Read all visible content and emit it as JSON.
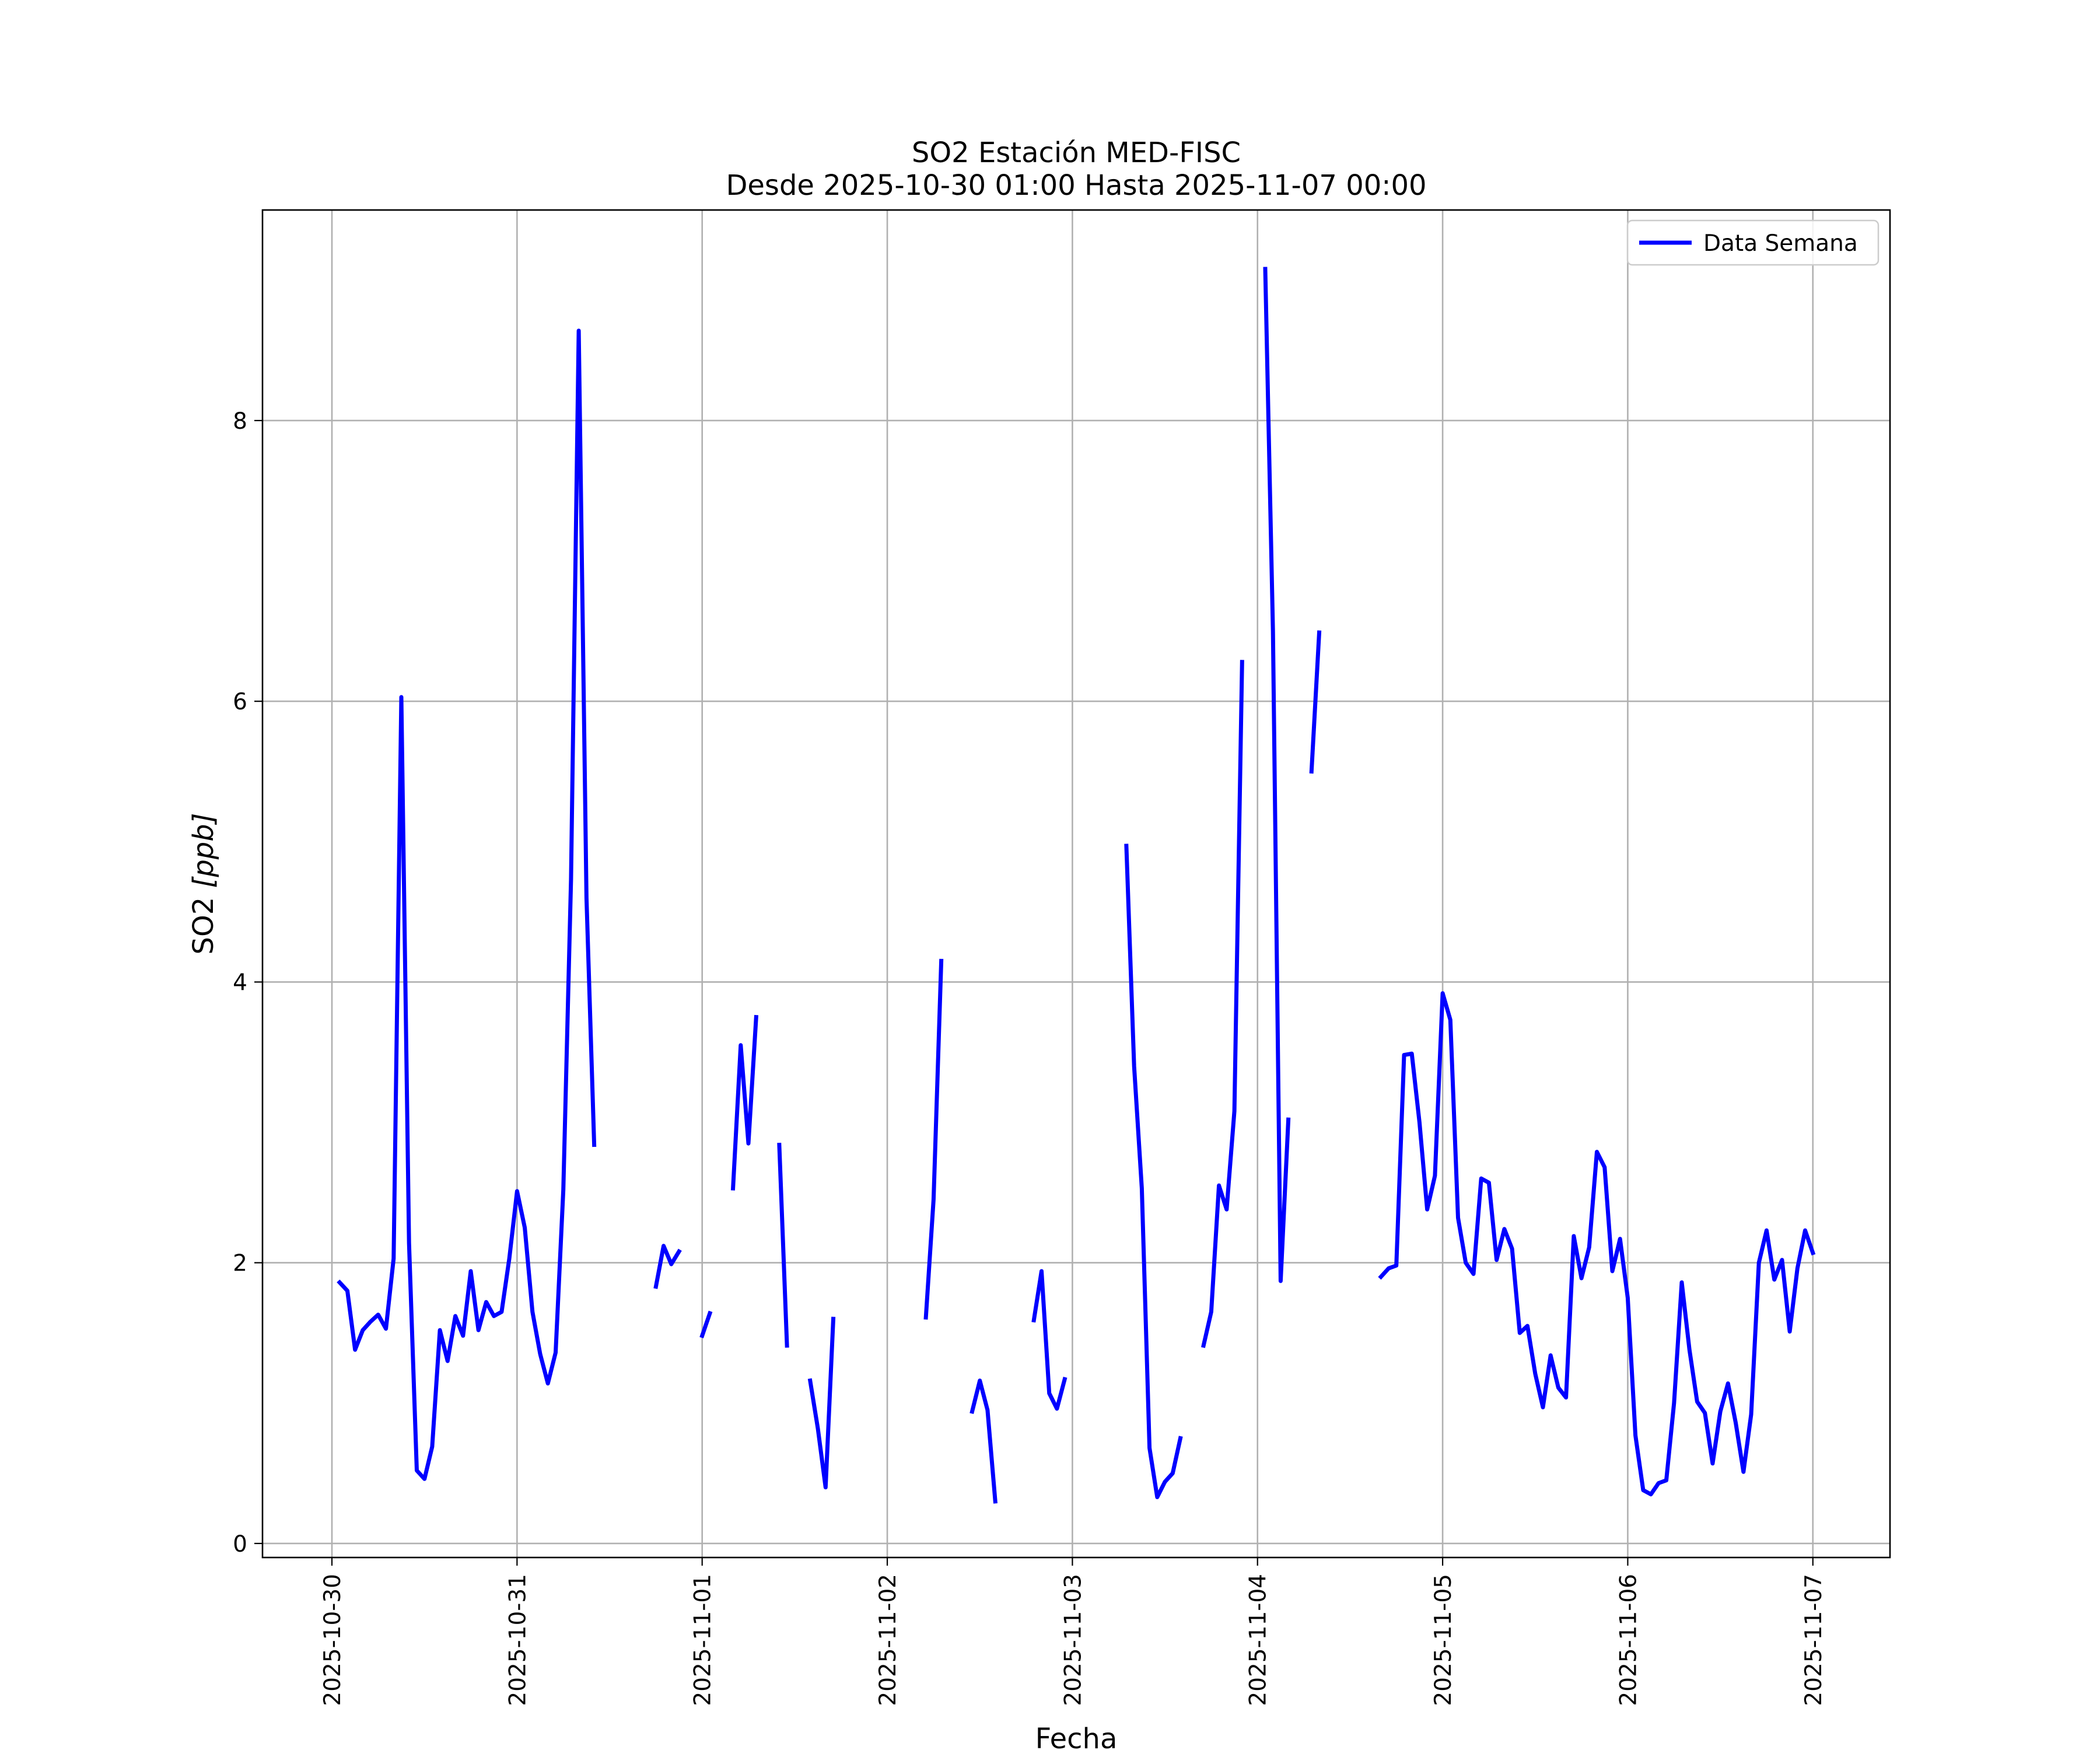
{
  "chart_data": {
    "type": "line",
    "title": "SO2 Estación MED-FISC",
    "subtitle": "Desde 2025-10-30 01:00 Hasta 2025-11-07 00:00",
    "xlabel": "Fecha",
    "ylabel_main": "SO2",
    "ylabel_unit": "[ppb]",
    "ylim": [
      -0.1,
      9.5
    ],
    "xlim": [
      "2025-10-29 15:00",
      "2025-11-07 10:00"
    ],
    "x_ticks": [
      "2025-10-30",
      "2025-10-31",
      "2025-11-01",
      "2025-11-02",
      "2025-11-03",
      "2025-11-04",
      "2025-11-05",
      "2025-11-06",
      "2025-11-07"
    ],
    "y_ticks": [
      "0",
      "2",
      "4",
      "6",
      "8"
    ],
    "grid": true,
    "legend_position": "top-right",
    "series": [
      {
        "name": "Data Semana",
        "color": "#0000ff",
        "segments": [
          [
            [
              "2025-10-30 01:00",
              1.86
            ],
            [
              "2025-10-30 02:00",
              1.8
            ],
            [
              "2025-10-30 03:00",
              1.38
            ],
            [
              "2025-10-30 04:00",
              1.52
            ],
            [
              "2025-10-30 05:00",
              1.58
            ],
            [
              "2025-10-30 06:00",
              1.63
            ],
            [
              "2025-10-30 07:00",
              1.53
            ],
            [
              "2025-10-30 08:00",
              2.03
            ],
            [
              "2025-10-30 09:00",
              6.03
            ],
            [
              "2025-10-30 10:00",
              2.14
            ],
            [
              "2025-10-30 11:00",
              0.52
            ],
            [
              "2025-10-30 12:00",
              0.46
            ],
            [
              "2025-10-30 13:00",
              0.69
            ],
            [
              "2025-10-30 14:00",
              1.52
            ],
            [
              "2025-10-30 15:00",
              1.3
            ],
            [
              "2025-10-30 16:00",
              1.62
            ],
            [
              "2025-10-30 17:00",
              1.48
            ],
            [
              "2025-10-30 18:00",
              1.94
            ],
            [
              "2025-10-30 19:00",
              1.52
            ],
            [
              "2025-10-30 20:00",
              1.72
            ],
            [
              "2025-10-30 21:00",
              1.62
            ],
            [
              "2025-10-30 22:00",
              1.65
            ],
            [
              "2025-10-30 23:00",
              2.03
            ],
            [
              "2025-10-31 00:00",
              2.51
            ],
            [
              "2025-10-31 01:00",
              2.25
            ],
            [
              "2025-10-31 02:00",
              1.65
            ],
            [
              "2025-10-31 03:00",
              1.35
            ],
            [
              "2025-10-31 04:00",
              1.14
            ],
            [
              "2025-10-31 05:00",
              1.36
            ],
            [
              "2025-10-31 06:00",
              2.52
            ],
            [
              "2025-10-31 07:00",
              4.73
            ],
            [
              "2025-10-31 08:00",
              8.64
            ],
            [
              "2025-10-31 09:00",
              4.6
            ],
            [
              "2025-10-31 10:00",
              2.84
            ]
          ],
          [
            [
              "2025-10-31 18:00",
              1.83
            ],
            [
              "2025-10-31 19:00",
              2.12
            ],
            [
              "2025-10-31 20:00",
              1.99
            ],
            [
              "2025-10-31 21:00",
              2.08
            ]
          ],
          [
            [
              "2025-11-01 00:00",
              1.48
            ],
            [
              "2025-11-01 01:00",
              1.64
            ]
          ],
          [
            [
              "2025-11-01 04:00",
              2.53
            ],
            [
              "2025-11-01 05:00",
              3.55
            ],
            [
              "2025-11-01 06:00",
              2.85
            ],
            [
              "2025-11-01 07:00",
              3.75
            ]
          ],
          [
            [
              "2025-11-01 10:00",
              2.84
            ],
            [
              "2025-11-01 11:00",
              1.41
            ]
          ],
          [
            [
              "2025-11-01 14:00",
              1.16
            ],
            [
              "2025-11-01 15:00",
              0.82
            ],
            [
              "2025-11-01 16:00",
              0.4
            ],
            [
              "2025-11-01 17:00",
              1.6
            ]
          ],
          [
            [
              "2025-11-02 05:00",
              1.61
            ],
            [
              "2025-11-02 06:00",
              2.45
            ],
            [
              "2025-11-02 07:00",
              4.15
            ]
          ],
          [
            [
              "2025-11-02 11:00",
              0.94
            ],
            [
              "2025-11-02 12:00",
              1.16
            ],
            [
              "2025-11-02 13:00",
              0.95
            ],
            [
              "2025-11-02 14:00",
              0.3
            ]
          ],
          [
            [
              "2025-11-02 19:00",
              1.59
            ],
            [
              "2025-11-02 20:00",
              1.94
            ],
            [
              "2025-11-02 21:00",
              1.07
            ],
            [
              "2025-11-02 22:00",
              0.96
            ],
            [
              "2025-11-02 23:00",
              1.17
            ]
          ],
          [
            [
              "2025-11-03 07:00",
              4.97
            ],
            [
              "2025-11-03 08:00",
              3.4
            ],
            [
              "2025-11-03 09:00",
              2.53
            ],
            [
              "2025-11-03 10:00",
              0.68
            ],
            [
              "2025-11-03 11:00",
              0.33
            ],
            [
              "2025-11-03 12:00",
              0.44
            ],
            [
              "2025-11-03 13:00",
              0.5
            ],
            [
              "2025-11-03 14:00",
              0.75
            ]
          ],
          [
            [
              "2025-11-03 17:00",
              1.41
            ],
            [
              "2025-11-03 18:00",
              1.65
            ],
            [
              "2025-11-03 19:00",
              2.55
            ],
            [
              "2025-11-03 20:00",
              2.38
            ],
            [
              "2025-11-03 21:00",
              3.08
            ],
            [
              "2025-11-03 22:00",
              6.28
            ]
          ],
          [
            [
              "2025-11-04 01:00",
              9.08
            ],
            [
              "2025-11-04 02:00",
              6.5
            ],
            [
              "2025-11-04 03:00",
              1.87
            ],
            [
              "2025-11-04 04:00",
              3.02
            ]
          ],
          [
            [
              "2025-11-04 07:00",
              5.5
            ],
            [
              "2025-11-04 08:00",
              6.49
            ]
          ],
          [
            [
              "2025-11-04 16:00",
              1.9
            ],
            [
              "2025-11-04 17:00",
              1.96
            ],
            [
              "2025-11-04 18:00",
              1.98
            ],
            [
              "2025-11-04 19:00",
              3.48
            ],
            [
              "2025-11-04 20:00",
              3.49
            ],
            [
              "2025-11-04 21:00",
              3.0
            ],
            [
              "2025-11-04 22:00",
              2.38
            ],
            [
              "2025-11-04 23:00",
              2.62
            ],
            [
              "2025-11-05 00:00",
              3.92
            ],
            [
              "2025-11-05 01:00",
              3.73
            ],
            [
              "2025-11-05 02:00",
              2.32
            ],
            [
              "2025-11-05 03:00",
              2.0
            ],
            [
              "2025-11-05 04:00",
              1.92
            ],
            [
              "2025-11-05 05:00",
              2.6
            ],
            [
              "2025-11-05 06:00",
              2.57
            ],
            [
              "2025-11-05 07:00",
              2.02
            ],
            [
              "2025-11-05 08:00",
              2.24
            ],
            [
              "2025-11-05 09:00",
              2.1
            ],
            [
              "2025-11-05 10:00",
              1.5
            ],
            [
              "2025-11-05 11:00",
              1.55
            ],
            [
              "2025-11-05 12:00",
              1.21
            ],
            [
              "2025-11-05 13:00",
              0.97
            ],
            [
              "2025-11-05 14:00",
              1.34
            ],
            [
              "2025-11-05 15:00",
              1.11
            ],
            [
              "2025-11-05 16:00",
              1.04
            ],
            [
              "2025-11-05 17:00",
              2.19
            ],
            [
              "2025-11-05 18:00",
              1.89
            ],
            [
              "2025-11-05 19:00",
              2.11
            ],
            [
              "2025-11-05 20:00",
              2.79
            ],
            [
              "2025-11-05 21:00",
              2.68
            ],
            [
              "2025-11-05 22:00",
              1.94
            ],
            [
              "2025-11-05 23:00",
              2.17
            ],
            [
              "2025-11-06 00:00",
              1.75
            ],
            [
              "2025-11-06 01:00",
              0.77
            ],
            [
              "2025-11-06 02:00",
              0.38
            ],
            [
              "2025-11-06 03:00",
              0.35
            ],
            [
              "2025-11-06 04:00",
              0.43
            ],
            [
              "2025-11-06 05:00",
              0.45
            ],
            [
              "2025-11-06 06:00",
              1.0
            ],
            [
              "2025-11-06 07:00",
              1.86
            ],
            [
              "2025-11-06 08:00",
              1.38
            ],
            [
              "2025-11-06 09:00",
              1.01
            ],
            [
              "2025-11-06 10:00",
              0.93
            ],
            [
              "2025-11-06 11:00",
              0.57
            ],
            [
              "2025-11-06 12:00",
              0.94
            ],
            [
              "2025-11-06 13:00",
              1.14
            ],
            [
              "2025-11-06 14:00",
              0.86
            ],
            [
              "2025-11-06 15:00",
              0.51
            ],
            [
              "2025-11-06 16:00",
              0.92
            ],
            [
              "2025-11-06 17:00",
              2.0
            ],
            [
              "2025-11-06 18:00",
              2.23
            ],
            [
              "2025-11-06 19:00",
              1.88
            ],
            [
              "2025-11-06 20:00",
              2.02
            ],
            [
              "2025-11-06 21:00",
              1.51
            ],
            [
              "2025-11-06 22:00",
              1.96
            ],
            [
              "2025-11-06 23:00",
              2.23
            ],
            [
              "2025-11-07 00:00",
              2.07
            ]
          ]
        ]
      }
    ]
  }
}
